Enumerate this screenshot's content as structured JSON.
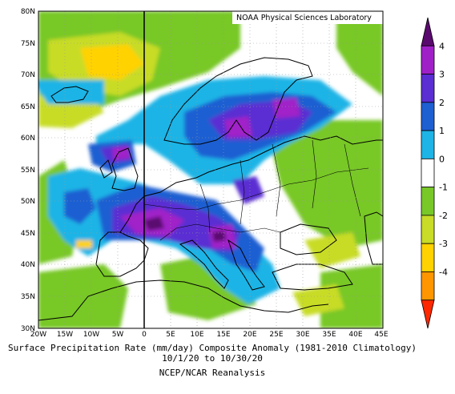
{
  "map": {
    "credit": "NOAA Physical Sciences Laboratory",
    "lat_labels": [
      "80N",
      "75N",
      "70N",
      "65N",
      "60N",
      "55N",
      "50N",
      "45N",
      "40N",
      "35N",
      "30N"
    ],
    "lon_labels": [
      "20W",
      "15W",
      "10W",
      "5W",
      "0",
      "5E",
      "10E",
      "15E",
      "20E",
      "25E",
      "30E",
      "35E",
      "40E",
      "45E"
    ],
    "lat_range": [
      30,
      80
    ],
    "lon_range": [
      -20,
      45
    ],
    "grid": "dotted"
  },
  "colorbar": {
    "labels": [
      "4",
      "3",
      "2",
      "1",
      "0",
      "-1",
      "-2",
      "-3",
      "-4"
    ],
    "colors": [
      "#5a0a6e",
      "#a020c8",
      "#5a2ed2",
      "#1e5fd2",
      "#1eb4e6",
      "#ffffff",
      "#78c828",
      "#c8dc28",
      "#ffd200",
      "#ff9600",
      "#ff2800"
    ]
  },
  "captions": {
    "line1": "Surface Precipitation Rate (mm/day) Composite Anomaly (1981-2010 Climatology)",
    "line2": "10/1/20 to 10/30/20",
    "line3": "NCEP/NCAR Reanalysis"
  }
}
